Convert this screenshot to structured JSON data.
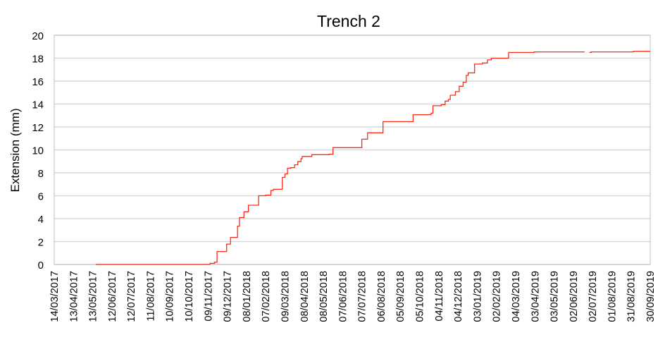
{
  "chart_data": {
    "type": "line",
    "title": "Trench 2",
    "xlabel": "",
    "ylabel": "Extension (mm)",
    "ylim": [
      0,
      20
    ],
    "yticks": [
      0,
      2,
      4,
      6,
      8,
      10,
      12,
      14,
      16,
      18,
      20
    ],
    "xlim": [
      "14/03/2017",
      "30/09/2019"
    ],
    "xticks": [
      "14/03/2017",
      "13/04/2017",
      "13/05/2017",
      "12/06/2017",
      "12/07/2017",
      "11/08/2017",
      "10/09/2017",
      "10/10/2017",
      "09/11/2017",
      "09/12/2017",
      "08/01/2018",
      "07/02/2018",
      "09/03/2018",
      "08/04/2018",
      "08/05/2018",
      "07/06/2018",
      "07/07/2018",
      "06/08/2018",
      "05/09/2018",
      "05/10/2018",
      "04/11/2018",
      "04/12/2018",
      "03/01/2019",
      "02/02/2019",
      "04/03/2019",
      "03/04/2019",
      "03/05/2019",
      "02/06/2019",
      "02/07/2019",
      "01/08/2019",
      "31/08/2019",
      "30/09/2019"
    ],
    "grid": true,
    "line_style": "step",
    "series": [
      {
        "color": "#ff2a1a",
        "x": [
          "18/05/2017",
          "03/11/2017",
          "12/11/2017",
          "19/11/2017",
          "23/11/2017",
          "08/12/2017",
          "14/12/2017",
          "25/12/2017",
          "28/12/2017",
          "04/01/2018",
          "11/01/2018",
          "27/01/2018",
          "07/02/2018",
          "15/02/2018",
          "19/02/2018",
          "05/03/2018",
          "09/03/2018",
          "13/03/2018",
          "18/03/2018",
          "24/03/2018",
          "29/03/2018",
          "03/04/2018",
          "05/04/2018",
          "20/04/2018",
          "17/05/2018",
          "23/05/2018",
          "07/07/2018",
          "16/07/2018",
          "09/08/2018",
          "25/09/2018",
          "23/10/2018",
          "26/10/2018",
          "08/11/2018",
          "14/11/2018",
          "19/11/2018",
          "22/11/2018",
          "30/11/2018",
          "06/12/2018",
          "12/12/2018",
          "17/12/2018",
          "20/12/2018",
          "30/12/2018",
          "11/01/2019",
          "19/01/2019",
          "25/01/2019",
          "21/02/2019",
          "02/04/2019",
          "19/06/2019",
          "20/06/2019",
          "27/06/2019",
          "30/06/2019",
          "04/09/2019",
          "30/09/2019"
        ],
        "y": [
          0,
          0,
          0.1,
          0.2,
          1.13,
          1.78,
          2.36,
          3.34,
          4.1,
          4.6,
          5.17,
          6.0,
          6.05,
          6.46,
          6.56,
          7.6,
          7.9,
          8.4,
          8.45,
          8.7,
          8.97,
          9.23,
          9.43,
          9.58,
          9.62,
          10.2,
          10.93,
          11.49,
          12.47,
          13.07,
          13.2,
          13.85,
          13.95,
          14.26,
          14.4,
          14.77,
          15.08,
          15.55,
          15.9,
          16.5,
          16.72,
          17.48,
          17.58,
          17.85,
          18.0,
          18.5,
          18.55,
          18.55,
          null,
          18.5,
          18.55,
          18.6,
          18.6
        ]
      }
    ]
  }
}
